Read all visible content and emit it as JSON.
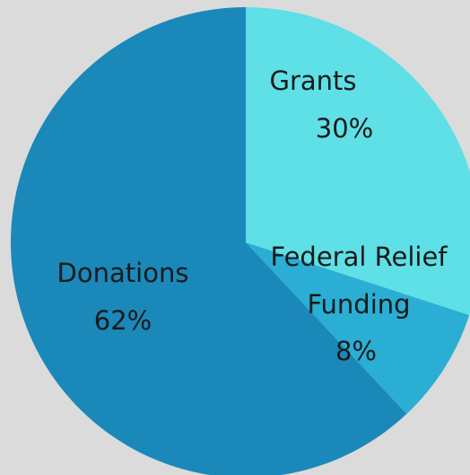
{
  "chart_data": {
    "type": "pie",
    "slices": [
      {
        "label": "Grants",
        "value": 30,
        "value_label": "30%",
        "color": "#5ee0e6"
      },
      {
        "label": "Federal Relief Funding",
        "value": 8,
        "value_label": "8%",
        "color": "#2aaed4"
      },
      {
        "label": "Donations",
        "value": 62,
        "value_label": "62%",
        "color": "#1b88ba"
      }
    ]
  },
  "colors": {
    "background": "#dbdbdb",
    "label_text": "#1a1a1a"
  }
}
